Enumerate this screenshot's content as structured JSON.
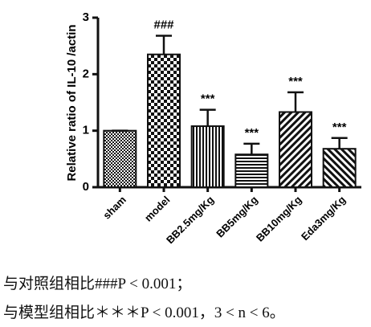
{
  "chart_data": {
    "type": "bar",
    "y_label": "Relative ratio of  IL-10 /actin",
    "categories": [
      "sham",
      "model",
      "BB2.5mg/Kg",
      "BB5mg/Kg",
      "BB10mg/Kg",
      "Eda3mg/Kg"
    ],
    "values": [
      1.0,
      2.35,
      1.08,
      0.58,
      1.33,
      0.68
    ],
    "errors": [
      0.0,
      0.33,
      0.29,
      0.19,
      0.35,
      0.19
    ],
    "significance": [
      null,
      "###",
      "***",
      "***",
      "***",
      "***"
    ],
    "color": "#111111",
    "ylim": [
      0,
      3
    ],
    "yticks": [
      0,
      1,
      2,
      3
    ]
  },
  "caption": [
    "与对照组相比###P < 0.001；",
    "与模型组相比＊＊＊P < 0.001，3 < n < 6。"
  ]
}
